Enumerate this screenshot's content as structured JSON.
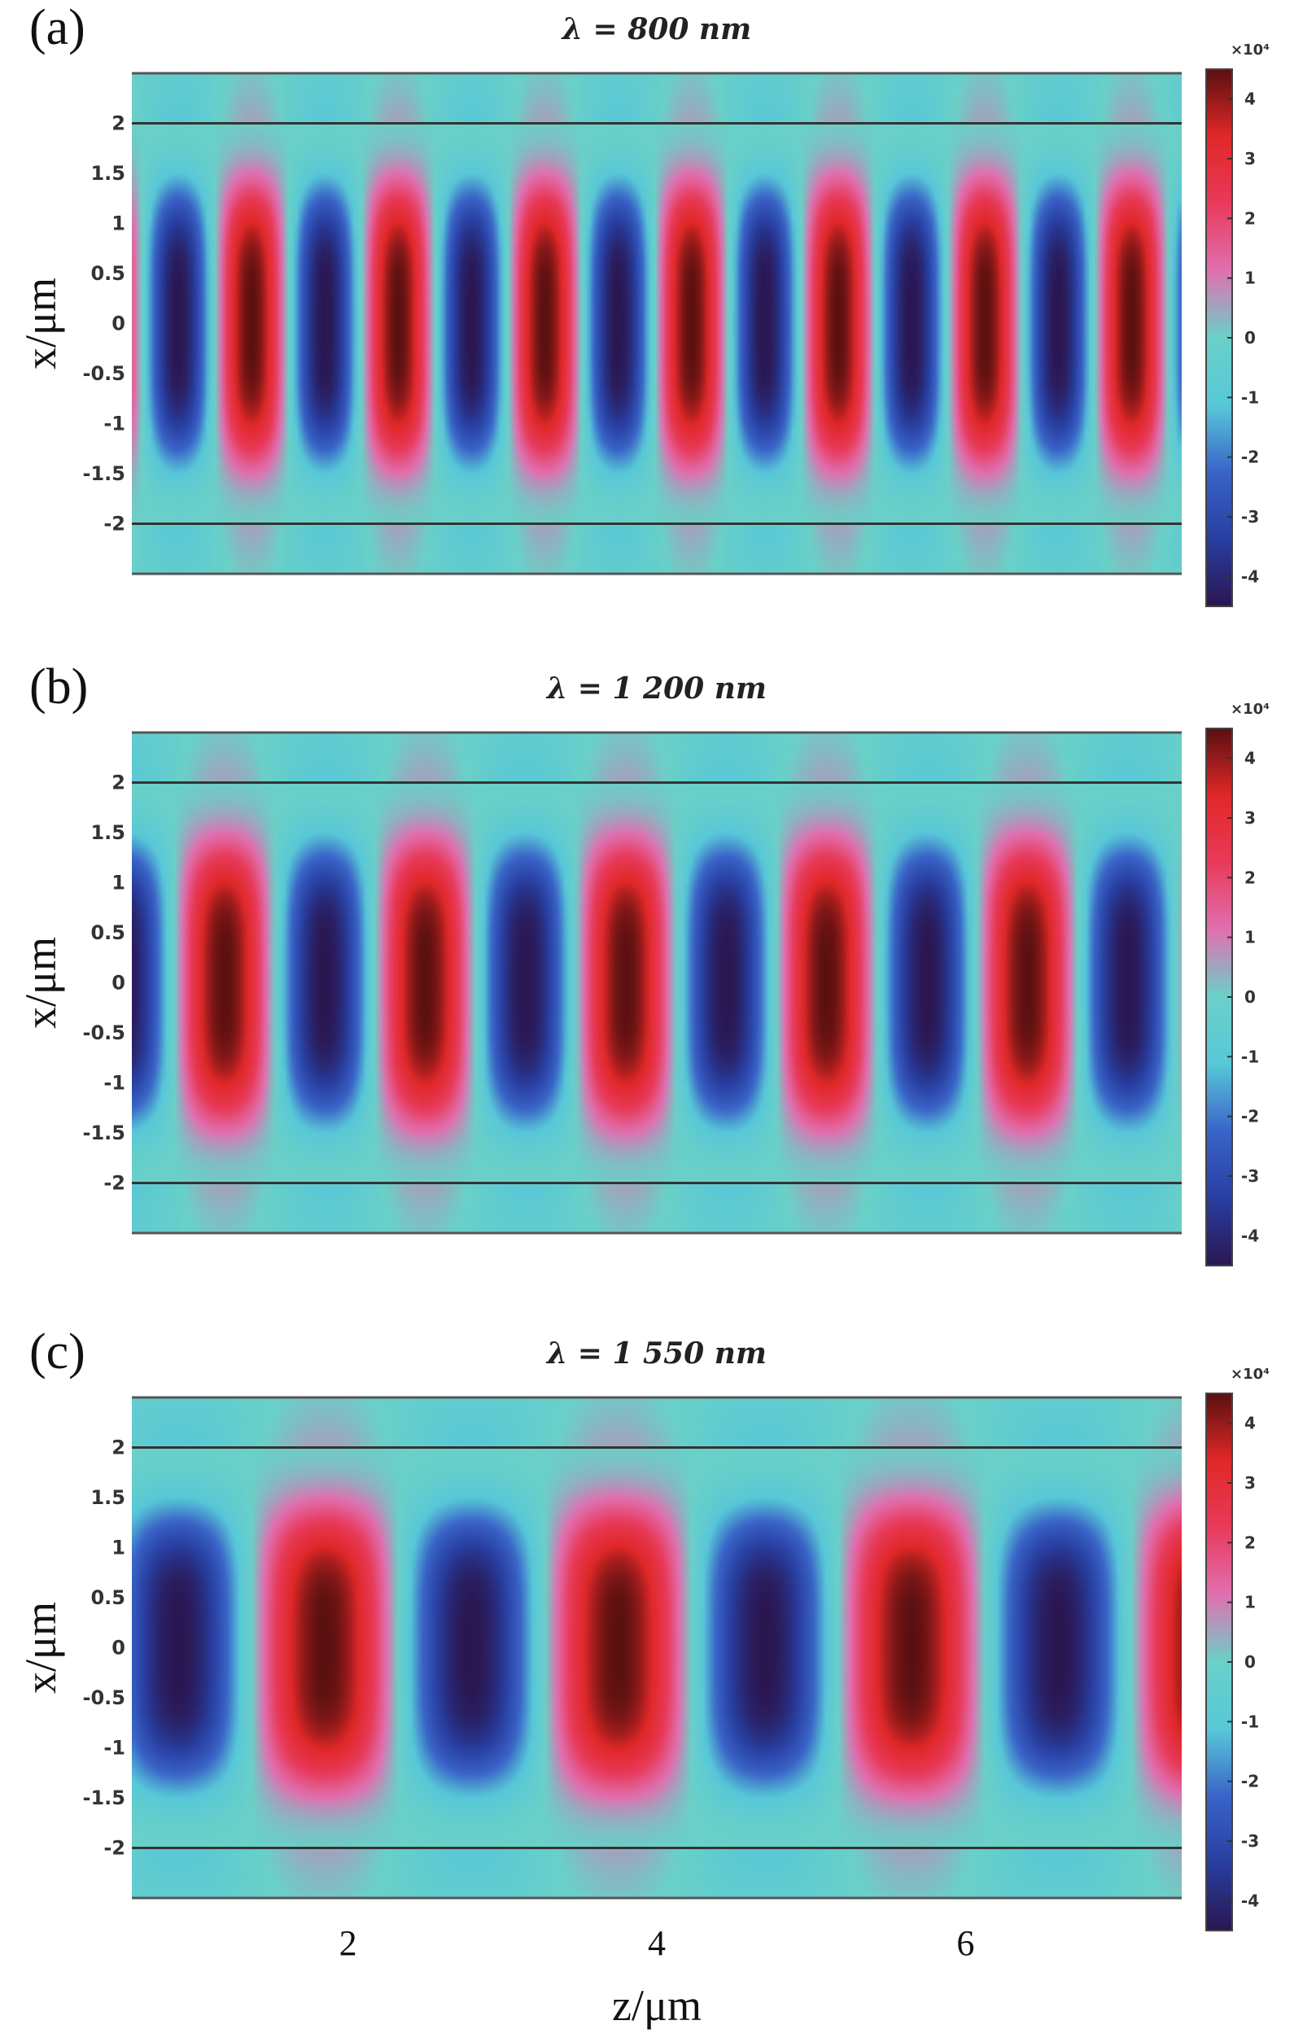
{
  "chart_data": [
    {
      "type": "heatmap",
      "panel_label": "(a)",
      "title": "λ = 800 nm",
      "ylabel": "x/μm",
      "yticks": [
        "2",
        "1.5",
        "1",
        "0.5",
        "0",
        "-0.5",
        "-1",
        "-1.5",
        "-2"
      ],
      "yticks_values": [
        2,
        1.5,
        1,
        0.5,
        0,
        -0.5,
        -1,
        -1.5,
        -2
      ],
      "ylim": [
        -2.5,
        2.5
      ],
      "xlim": [
        0.6,
        7.4
      ],
      "core_boundaries": [
        -2,
        2
      ],
      "field_period_um": 0.95,
      "first_negative_peak_z": 0.9,
      "colorbar": {
        "exponent": "×10⁴",
        "ticks": [
          "4",
          "3",
          "2",
          "1",
          "0",
          "-1",
          "-2",
          "-3",
          "-4"
        ],
        "ticks_values": [
          4,
          3,
          2,
          1,
          0,
          -1,
          -2,
          -3,
          -4
        ],
        "range": [
          -4.5,
          4.5
        ]
      }
    },
    {
      "type": "heatmap",
      "panel_label": "(b)",
      "title": "λ = 1 200 nm",
      "ylabel": "x/μm",
      "yticks": [
        "2",
        "1.5",
        "1",
        "0.5",
        "0",
        "-0.5",
        "-1",
        "-1.5",
        "-2"
      ],
      "yticks_values": [
        2,
        1.5,
        1,
        0.5,
        0,
        -0.5,
        -1,
        -1.5,
        -2
      ],
      "ylim": [
        -2.5,
        2.5
      ],
      "xlim": [
        0.6,
        7.4
      ],
      "core_boundaries": [
        -2,
        2
      ],
      "field_period_um": 1.3,
      "first_negative_peak_z": 0.55,
      "colorbar": {
        "exponent": "×10⁴",
        "ticks": [
          "4",
          "3",
          "2",
          "1",
          "0",
          "-1",
          "-2",
          "-3",
          "-4"
        ],
        "ticks_values": [
          4,
          3,
          2,
          1,
          0,
          -1,
          -2,
          -3,
          -4
        ],
        "range": [
          -4.5,
          4.5
        ]
      }
    },
    {
      "type": "heatmap",
      "panel_label": "(c)",
      "title": "λ = 1 550 nm",
      "ylabel": "x/μm",
      "xlabel": "z/μm",
      "xticks": [
        "2",
        "4",
        "6"
      ],
      "xticks_values": [
        2,
        4,
        6
      ],
      "yticks": [
        "2",
        "1.5",
        "1",
        "0.5",
        "0",
        "-0.5",
        "-1",
        "-1.5",
        "-2"
      ],
      "yticks_values": [
        2,
        1.5,
        1,
        0.5,
        0,
        -0.5,
        -1,
        -1.5,
        -2
      ],
      "ylim": [
        -2.5,
        2.5
      ],
      "xlim": [
        0.6,
        7.4
      ],
      "core_boundaries": [
        -2,
        2
      ],
      "field_period_um": 1.9,
      "first_negative_peak_z": 0.9,
      "colorbar": {
        "exponent": "×10⁴",
        "ticks": [
          "4",
          "3",
          "2",
          "1",
          "0",
          "-1",
          "-2",
          "-3",
          "-4"
        ],
        "ticks_values": [
          4,
          3,
          2,
          1,
          0,
          -1,
          -2,
          -3,
          -4
        ],
        "range": [
          -4.5,
          4.5
        ]
      }
    }
  ],
  "colors": {
    "colormap_stops": [
      "#2a1650",
      "#283ea0",
      "#3a64c8",
      "#58c8d8",
      "#6ad0c8",
      "#e070b0",
      "#e83a5a",
      "#e02828",
      "#5a1010"
    ],
    "boundary_line": "#333333",
    "plot_frame": "#555555"
  }
}
